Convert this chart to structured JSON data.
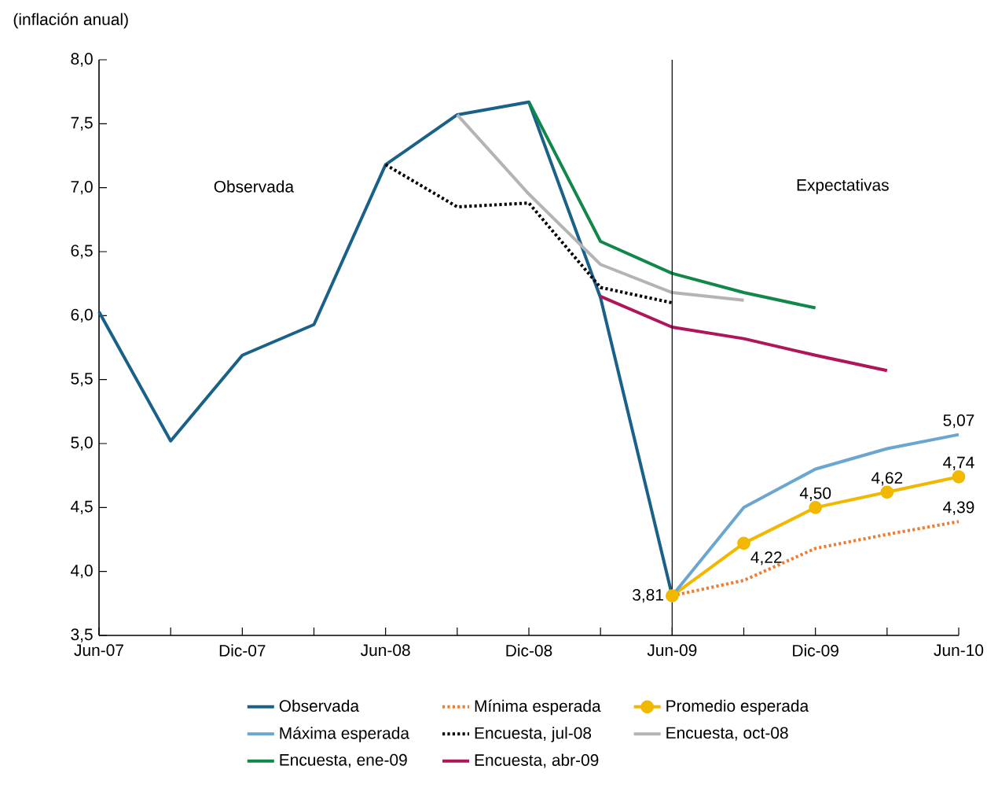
{
  "chart_data": {
    "type": "line",
    "ylabel": "(inflación anual)",
    "categories": [
      "Jun-07",
      null,
      "Dic-07",
      null,
      "Jun-08",
      null,
      "Dic-08",
      null,
      "Jun-09",
      null,
      "Dic-09",
      null,
      "Jun-10"
    ],
    "ylim": [
      3.5,
      8.0
    ],
    "yticks": [
      {
        "value": 3.5,
        "label": "3,5"
      },
      {
        "value": 4.0,
        "label": "4,0"
      },
      {
        "value": 4.5,
        "label": "4,5"
      },
      {
        "value": 5.0,
        "label": "5,0"
      },
      {
        "value": 5.5,
        "label": "5,5"
      },
      {
        "value": 6.0,
        "label": "6,0"
      },
      {
        "value": 6.5,
        "label": "6,5"
      },
      {
        "value": 7.0,
        "label": "7,0"
      },
      {
        "value": 7.5,
        "label": "7,5"
      },
      {
        "value": 8.0,
        "label": "8,0"
      }
    ],
    "series": [
      {
        "name": "Observada",
        "color": "#1a6189",
        "values": [
          6.03,
          5.02,
          5.69,
          5.93,
          7.18,
          7.57,
          7.67,
          6.14,
          3.81,
          null,
          null,
          null,
          null
        ]
      },
      {
        "name": "Mínima esperada",
        "color": "#ed7d31",
        "line_style": "dotted",
        "values": [
          null,
          null,
          null,
          null,
          null,
          null,
          null,
          null,
          3.81,
          3.93,
          4.18,
          4.29,
          4.39
        ],
        "value_labels": [
          null,
          null,
          null,
          null,
          null,
          null,
          null,
          null,
          null,
          null,
          null,
          null,
          "4,39"
        ]
      },
      {
        "name": "Promedio esperada",
        "color": "#f2b800",
        "marker": "circle",
        "values": [
          null,
          null,
          null,
          null,
          null,
          null,
          null,
          null,
          3.81,
          4.22,
          4.5,
          4.62,
          4.74
        ],
        "value_labels": [
          null,
          null,
          null,
          null,
          null,
          null,
          null,
          null,
          "3,81",
          "4,22",
          "4,50",
          "4,62",
          "4,74"
        ]
      },
      {
        "name": "Máxima esperada",
        "color": "#6aa6d0",
        "values": [
          null,
          null,
          null,
          null,
          null,
          null,
          null,
          null,
          3.81,
          4.5,
          4.8,
          4.96,
          5.07
        ],
        "value_labels": [
          null,
          null,
          null,
          null,
          null,
          null,
          null,
          null,
          null,
          null,
          null,
          null,
          "5,07"
        ]
      },
      {
        "name": "Encuesta, jul-08",
        "color": "#000000",
        "line_style": "dotted",
        "values": [
          null,
          null,
          null,
          null,
          7.18,
          6.85,
          6.88,
          6.22,
          6.1,
          null,
          null,
          null,
          null
        ]
      },
      {
        "name": "Encuesta, oct-08",
        "color": "#b4b4b4",
        "values": [
          null,
          null,
          null,
          null,
          null,
          7.57,
          6.95,
          6.4,
          6.18,
          6.12,
          null,
          null,
          null
        ]
      },
      {
        "name": "Encuesta, ene-09",
        "color": "#11884a",
        "values": [
          null,
          null,
          null,
          null,
          null,
          null,
          7.67,
          6.58,
          6.33,
          6.18,
          6.06,
          null,
          null
        ]
      },
      {
        "name": "Encuesta, abr-09",
        "color": "#b0155a",
        "values": [
          null,
          null,
          null,
          null,
          null,
          null,
          null,
          6.15,
          5.91,
          5.82,
          5.69,
          5.57,
          null
        ]
      }
    ],
    "ref_lines": [
      {
        "axis": "x",
        "value": "Jun-09",
        "color": "#000000"
      }
    ],
    "annotations": [
      "Observada",
      "Expectativas"
    ],
    "legend": "bottom",
    "grid": false,
    "marker": "none",
    "line_style": "solid"
  }
}
